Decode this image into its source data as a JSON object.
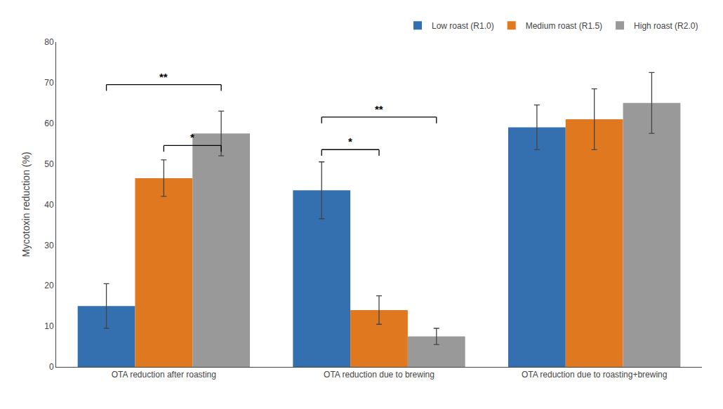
{
  "chart_data": {
    "type": "bar",
    "categories": [
      "OTA reduction after roasting",
      "OTA reduction due to brewing",
      "OTA reduction due to roasting+brewing"
    ],
    "series": [
      {
        "name": "Low roast (R1.0)",
        "color": "#3470b0",
        "values": [
          15.0,
          43.5,
          59.0
        ],
        "errors": [
          5.5,
          7.0,
          5.5
        ]
      },
      {
        "name": "Medium roast (R1.5)",
        "color": "#e07820",
        "values": [
          46.5,
          14.0,
          61.0
        ],
        "errors": [
          4.5,
          3.5,
          7.5
        ]
      },
      {
        "name": "High roast (R2.0)",
        "color": "#999999",
        "values": [
          57.5,
          7.5,
          65.0
        ],
        "errors": [
          5.5,
          2.0,
          7.5
        ]
      }
    ],
    "ylabel": "Mycotoxin reduction (%)",
    "ylim": [
      0,
      80
    ],
    "yticks": [
      0,
      10,
      20,
      30,
      40,
      50,
      60,
      70,
      80
    ],
    "grid": false,
    "legend": "upper right",
    "annotations": [
      {
        "text": "*",
        "category": "OTA reduction after roasting",
        "between": [
          "Medium roast (R1.5)",
          "High roast (R2.0)"
        ],
        "y": 53.0
      },
      {
        "text": "**",
        "category": "OTA reduction after roasting",
        "between": [
          "Low roast (R1.0)",
          "High roast (R2.0)"
        ],
        "y": 68.0
      },
      {
        "text": "*",
        "category": "OTA reduction due to brewing",
        "between": [
          "Low roast (R1.0)",
          "Medium roast (R1.5)"
        ],
        "y": 52.0
      },
      {
        "text": "**",
        "category": "OTA reduction due to brewing",
        "between": [
          "Low roast (R1.0)",
          "High roast (R2.0)"
        ],
        "y": 60.0
      }
    ]
  }
}
